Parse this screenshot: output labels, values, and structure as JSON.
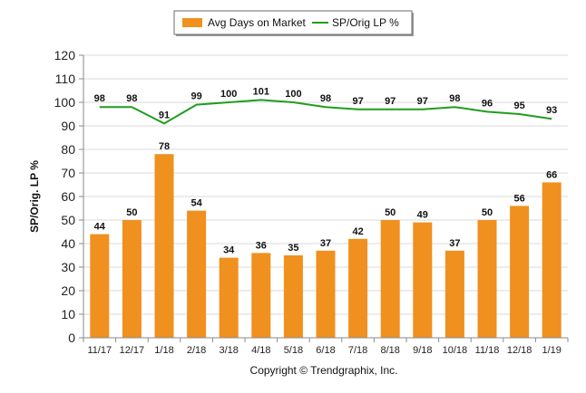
{
  "chart_data": {
    "type": "bar",
    "categories": [
      "11/17",
      "12/17",
      "1/18",
      "2/18",
      "3/18",
      "4/18",
      "5/18",
      "6/18",
      "7/18",
      "8/18",
      "9/18",
      "10/18",
      "11/18",
      "12/18",
      "1/19"
    ],
    "series": [
      {
        "name": "Avg Days on Market",
        "kind": "bar",
        "color": "#f0901e",
        "values": [
          44,
          50,
          78,
          54,
          34,
          36,
          35,
          37,
          42,
          50,
          49,
          37,
          50,
          56,
          66
        ]
      },
      {
        "name": "SP/Orig LP %",
        "kind": "line",
        "color": "#1e9e1e",
        "values": [
          98,
          98,
          91,
          99,
          100,
          101,
          100,
          98,
          97,
          97,
          97,
          98,
          96,
          95,
          93
        ]
      }
    ],
    "ylabel": "SP/Orig. LP %",
    "ylim": [
      0,
      120
    ],
    "yticks": [
      "0",
      "10",
      "20",
      "30",
      "40",
      "50",
      "60",
      "70",
      "80",
      "90",
      "100",
      "110",
      "120"
    ],
    "grid": true,
    "legend": "top-center",
    "footer": "Copyright © Trendgraphix, Inc."
  }
}
